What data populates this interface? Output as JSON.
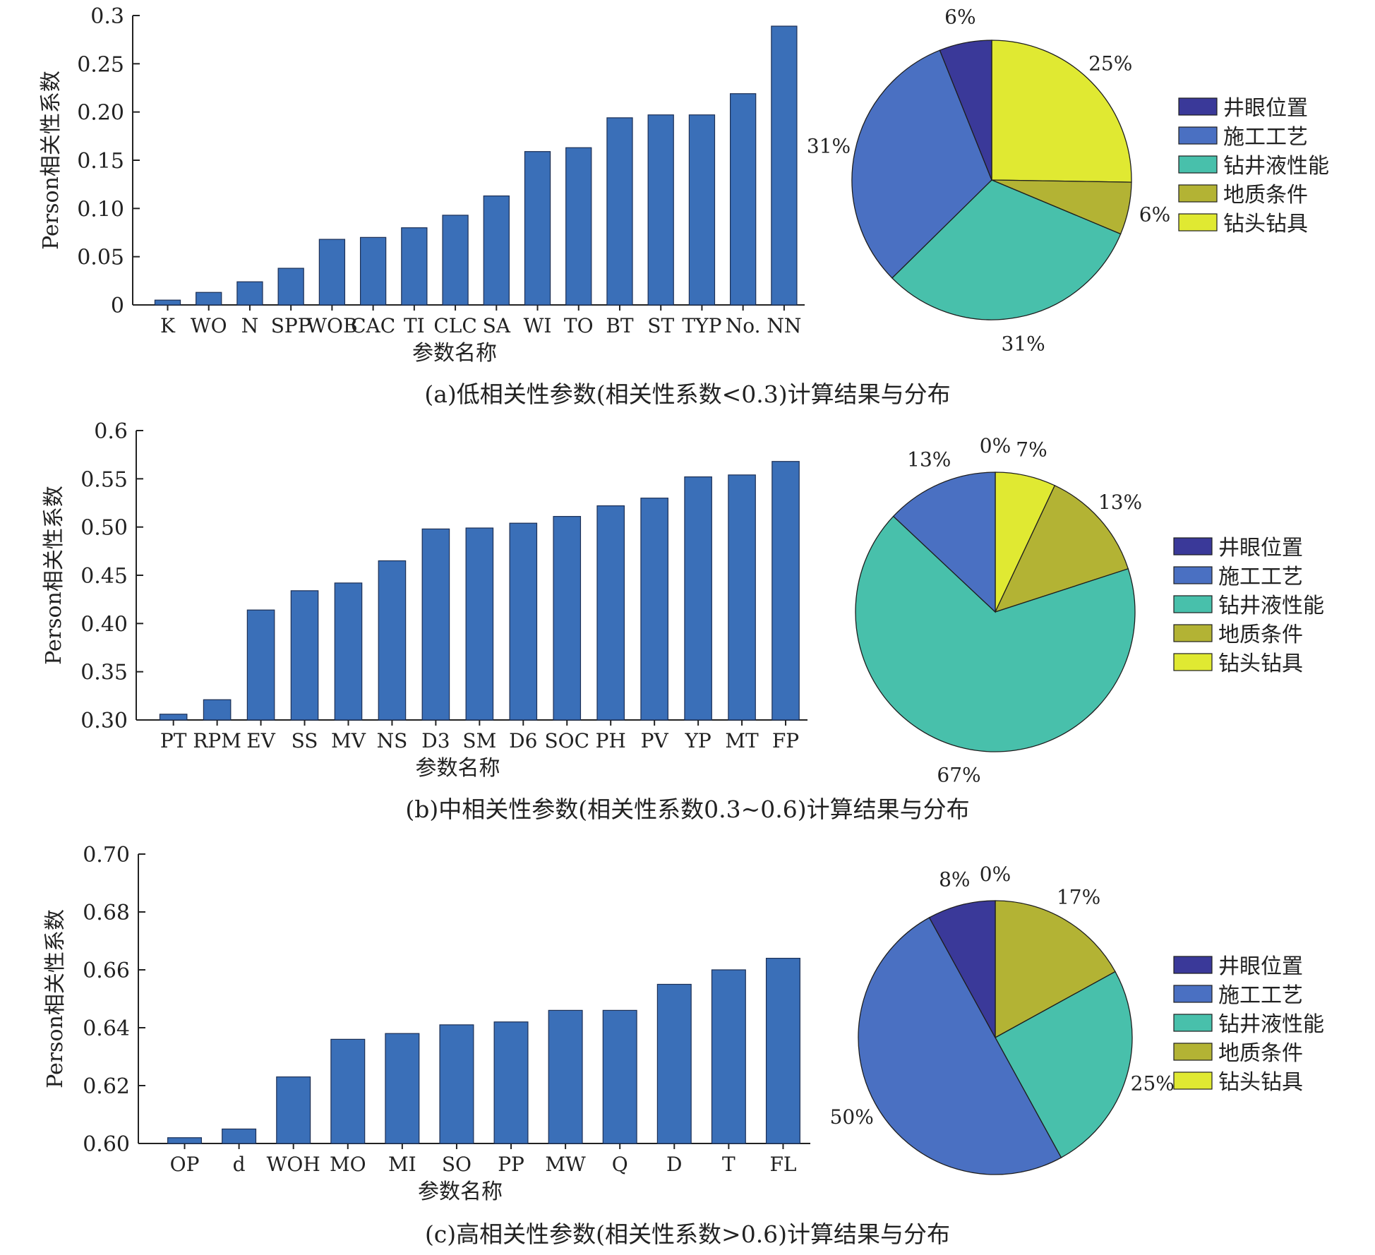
{
  "colors": {
    "bar": "#3a6fb8",
    "井眼位置": "#3a3999",
    "施工工艺": "#4a70c2",
    "钻井液性能": "#48c0ab",
    "地质条件": "#b3b334",
    "钻头钻具": "#e0e932"
  },
  "chart_data": [
    {
      "type": "bar",
      "panel": "a",
      "ylabel": "Person相关性系数",
      "xlabel": "参数名称",
      "ylim": [
        0,
        0.3
      ],
      "yticks": [
        "0",
        "0.05",
        "0.10",
        "0.15",
        "0.20",
        "0.25",
        "0.3"
      ],
      "categories": [
        "K",
        "WO",
        "N",
        "SPP",
        "WOB",
        "CAC",
        "TI",
        "CLC",
        "SA",
        "WI",
        "TO",
        "BT",
        "ST",
        "TYP",
        "No.",
        "NN"
      ],
      "values": [
        0.005,
        0.013,
        0.024,
        0.038,
        0.068,
        0.07,
        0.08,
        0.093,
        0.113,
        0.159,
        0.163,
        0.194,
        0.197,
        0.197,
        0.219,
        0.289
      ]
    },
    {
      "type": "pie",
      "panel": "a",
      "legend_position": "right",
      "labels": [
        "井眼位置",
        "施工工艺",
        "钻井液性能",
        "地质条件",
        "钻头钻具"
      ],
      "slices": [
        {
          "name": "钻头钻具",
          "value": 25,
          "label": "25%"
        },
        {
          "name": "地质条件",
          "value": 6,
          "label": "6%"
        },
        {
          "name": "钻井液性能",
          "value": 31,
          "label": "31%"
        },
        {
          "name": "施工工艺",
          "value": 31,
          "label": "31%"
        },
        {
          "name": "井眼位置",
          "value": 6,
          "label": "6%"
        }
      ]
    },
    {
      "type": "bar",
      "panel": "b",
      "ylabel": "Person相关性系数",
      "xlabel": "参数名称",
      "ylim": [
        0.3,
        0.6
      ],
      "yticks": [
        "0.30",
        "0.35",
        "0.40",
        "0.45",
        "0.50",
        "0.55",
        "0.6"
      ],
      "categories": [
        "PT",
        "RPM",
        "EV",
        "SS",
        "MV",
        "NS",
        "D3",
        "SM",
        "D6",
        "SOC",
        "PH",
        "PV",
        "YP",
        "MT",
        "FP"
      ],
      "values": [
        0.306,
        0.321,
        0.414,
        0.434,
        0.442,
        0.465,
        0.498,
        0.499,
        0.504,
        0.511,
        0.522,
        0.53,
        0.552,
        0.554,
        0.568
      ]
    },
    {
      "type": "pie",
      "panel": "b",
      "legend_position": "right",
      "labels": [
        "井眼位置",
        "施工工艺",
        "钻井液性能",
        "地质条件",
        "钻头钻具"
      ],
      "slices": [
        {
          "name": "钻头钻具",
          "value": 7,
          "label": "7%"
        },
        {
          "name": "地质条件",
          "value": 13,
          "label": "13%"
        },
        {
          "name": "钻井液性能",
          "value": 67,
          "label": "67%"
        },
        {
          "name": "施工工艺",
          "value": 13,
          "label": "13%"
        },
        {
          "name": "井眼位置",
          "value": 0,
          "label": "0%"
        }
      ]
    },
    {
      "type": "bar",
      "panel": "c",
      "ylabel": "Person相关性系数",
      "xlabel": "参数名称",
      "ylim": [
        0.6,
        0.7
      ],
      "yticks": [
        "0.60",
        "0.62",
        "0.64",
        "0.66",
        "0.68",
        "0.70"
      ],
      "categories": [
        "OP",
        "d",
        "WOH",
        "MO",
        "MI",
        "SO",
        "PP",
        "MW",
        "Q",
        "D",
        "T",
        "FL"
      ],
      "values": [
        0.602,
        0.605,
        0.623,
        0.636,
        0.638,
        0.641,
        0.642,
        0.646,
        0.646,
        0.655,
        0.66,
        0.664
      ]
    },
    {
      "type": "pie",
      "panel": "c",
      "legend_position": "right",
      "labels": [
        "井眼位置",
        "施工工艺",
        "钻井液性能",
        "地质条件",
        "钻头钻具"
      ],
      "slices": [
        {
          "name": "地质条件",
          "value": 17,
          "label": "17%"
        },
        {
          "name": "钻井液性能",
          "value": 25,
          "label": "25%"
        },
        {
          "name": "施工工艺",
          "value": 50,
          "label": "50%"
        },
        {
          "name": "井眼位置",
          "value": 8,
          "label": "8%"
        },
        {
          "name": "钻头钻具",
          "value": 0,
          "label": "0%"
        }
      ]
    }
  ],
  "captions": {
    "a": "(a)低相关性参数(相关性系数<0.3)计算结果与分布",
    "b": "(b)中相关性参数(相关性系数0.3~0.6)计算结果与分布",
    "c": "(c)高相关性参数(相关性系数>0.6)计算结果与分布"
  }
}
